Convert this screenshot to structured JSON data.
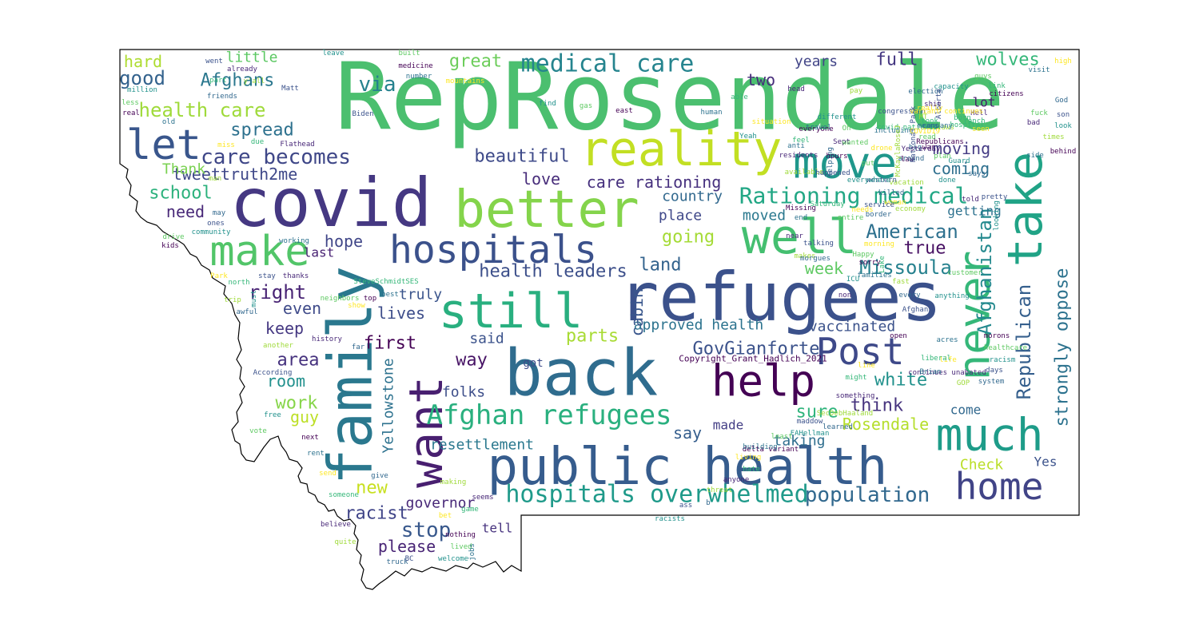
{
  "palette": {
    "outline": "#000000",
    "background": "#ffffff"
  },
  "words": [
    [
      "RepRosendale",
      "#4bbf6f"
    ],
    [
      "refugees",
      "#3b518b"
    ],
    [
      "covid",
      "#453882"
    ],
    [
      "back",
      "#2f6c8e"
    ],
    [
      "public health",
      "#365c8d"
    ],
    [
      "family",
      "#2a788e"
    ],
    [
      "better",
      "#84d44b"
    ],
    [
      "take",
      "#20a386"
    ],
    [
      "reality",
      "#c2df23"
    ],
    [
      "well",
      "#44bf70"
    ],
    [
      "move",
      "#1f978b"
    ],
    [
      "help",
      "#440154"
    ],
    [
      "want",
      "#481f70"
    ],
    [
      "still",
      "#29af7f"
    ],
    [
      "hospitals",
      "#3b518b"
    ],
    [
      "much",
      "#1e9c89"
    ],
    [
      "never",
      "#35b779"
    ],
    [
      "let",
      "#39568c"
    ],
    [
      "make",
      "#52c569"
    ],
    [
      "Post",
      "#3e4989"
    ],
    [
      "home",
      "#414487"
    ],
    [
      "Afghan refugees",
      "#2ab07f"
    ],
    [
      "hospitals overwhelmed",
      "#1f9a8a"
    ],
    [
      "medical care",
      "#25848e"
    ],
    [
      "Rationing medical",
      "#22a785"
    ],
    [
      "Afghanistan",
      "#23898e"
    ],
    [
      "Republican",
      "#355f8d"
    ],
    [
      "strongly oppose",
      "#2c728e"
    ],
    [
      "population",
      "#31688e"
    ],
    [
      "American",
      "#2d708e"
    ],
    [
      "Missoula",
      "#26818e"
    ],
    [
      "care becomes",
      "#3f4788"
    ],
    [
      "health care",
      "#9fda3a"
    ],
    [
      "GovGianforte",
      "#3b528b"
    ],
    [
      "Afghans",
      "#2a778e"
    ],
    [
      "good",
      "#33628d"
    ],
    [
      "via",
      "#26828e"
    ],
    [
      "great",
      "#6ccd5a"
    ],
    [
      "full",
      "#453781"
    ],
    [
      "wolves",
      "#35b779"
    ],
    [
      "two",
      "#472d7b"
    ],
    [
      "years",
      "#414487"
    ],
    [
      "spread",
      "#2d718e"
    ],
    [
      "beautiful",
      "#3e4a89"
    ],
    [
      "care rationing",
      "#46307e"
    ],
    [
      "health leaders",
      "#3c4f8a"
    ],
    [
      "school",
      "#2db27d"
    ],
    [
      "tweettruth2me",
      "#3f4889"
    ],
    [
      "Thank",
      "#7ad151"
    ],
    [
      "need",
      "#482878"
    ],
    [
      "hope",
      "#404688"
    ],
    [
      "right",
      "#482374"
    ],
    [
      "going",
      "#a5db36"
    ],
    [
      "land",
      "#33638d"
    ],
    [
      "moving",
      "#443b84"
    ],
    [
      "coming",
      "#2e6f8e"
    ],
    [
      "week",
      "#5ec962"
    ],
    [
      "true",
      "#471063"
    ],
    [
      "Rosendale",
      "#b5de2b"
    ],
    [
      "think",
      "#46337e"
    ],
    [
      "white",
      "#21918c"
    ],
    [
      "sure",
      "#2fb47c"
    ],
    [
      "vaccinated",
      "#3b528b"
    ],
    [
      "approved health",
      "#2c738e"
    ],
    [
      "parts",
      "#a8db34"
    ],
    [
      "cabin",
      "#39568c"
    ],
    [
      "first",
      "#440154"
    ],
    [
      "truly",
      "#3a548c"
    ],
    [
      "lives",
      "#3d4d8a"
    ],
    [
      "even",
      "#3e4a89"
    ],
    [
      "area",
      "#46327e"
    ],
    [
      "keep",
      "#453882"
    ],
    [
      "room",
      "#21908d"
    ],
    [
      "work",
      "#86d549"
    ],
    [
      "guy",
      "#bddf26"
    ],
    [
      "racist",
      "#404588"
    ],
    [
      "stop",
      "#38588c"
    ],
    [
      "please",
      "#482475"
    ],
    [
      "new",
      "#c8e020"
    ],
    [
      "governor",
      "#482878"
    ],
    [
      "resettlement",
      "#2a788e"
    ],
    [
      "say",
      "#355e8d"
    ],
    [
      "way",
      "#471365"
    ],
    [
      "said",
      "#3b528b"
    ],
    [
      "folks",
      "#3d4e8a"
    ],
    [
      "love",
      "#472c7a"
    ],
    [
      "place",
      "#3f4889"
    ],
    [
      "country",
      "#31688e"
    ],
    [
      "moved",
      "#2a788e"
    ],
    [
      "taking",
      "#2e6e8e"
    ],
    [
      "Check",
      "#bade28"
    ],
    [
      "Yes",
      "#3b528b"
    ],
    [
      "Yellowstone",
      "#2c718e"
    ],
    [
      "made",
      "#433e85"
    ],
    [
      "got",
      "#3e4c8a"
    ],
    [
      "tell",
      "#46327e"
    ],
    [
      "come",
      "#31688e"
    ],
    [
      "lot",
      "#481a6c"
    ],
    [
      "getting",
      "#2c718e"
    ],
    [
      "last",
      "#482173"
    ],
    [
      "hard",
      "#addc30"
    ],
    [
      "little",
      "#5cc863"
    ],
    [
      "Copyright_Grant_Hadlich_2021",
      "#440154"
    ]
  ],
  "small_words": [
    "went",
    "leave",
    "built",
    "medicine",
    "number",
    "mountains",
    "part",
    "already",
    "y'all",
    "friends",
    "Matt",
    "million",
    "less",
    "real",
    "old",
    "miss",
    "due",
    "Flathead",
    "man",
    "may",
    "ones",
    "community",
    "drive",
    "kids",
    "working",
    "Park",
    "north",
    "thanks",
    "trip",
    "awful",
    "stay",
    "must",
    "neighbors",
    "top",
    "best",
    "show",
    "SteveSchmidtSES",
    "history",
    "another",
    "far",
    "According",
    "free",
    "vote",
    "next",
    "rent",
    "send",
    "someone",
    "believe",
    "quite",
    "truck",
    "BC",
    "welcome",
    "lived",
    "nothing",
    "jobs",
    "bet",
    "game",
    "seems",
    "making",
    "give",
    "Biden",
    "find",
    "gas",
    "east",
    "human",
    "situation",
    "able",
    "head",
    "pay",
    "election",
    "Alberta",
    "capacity",
    "guys",
    "citizens",
    "visit",
    "high",
    "link",
    "bad",
    "times",
    "God",
    "son",
    "look",
    "fuck",
    "behind",
    "side",
    "seen",
    "ranch",
    "Hell",
    "laws",
    "big",
    "congressman",
    "different",
    "Oh",
    "everyone",
    "anti",
    "really",
    "covid patients",
    "residents",
    "available",
    "helping",
    "happened",
    "Yeah",
    "put",
    "law",
    "including",
    "drone",
    "feel",
    "Sept",
    "McKaylaRoseJ",
    "around",
    "National Park",
    "done",
    "read",
    "Republicans",
    "company",
    "variant continues",
    "hospital",
    "shit",
    "MT",
    "says",
    "pretty",
    "Guard",
    "plan",
    "war",
    "means",
    "COVID19",
    "took",
    "Yesterday",
    "vacation",
    "killed",
    "western",
    "everywhere",
    "wanted",
    "hours",
    "travel",
    "woman",
    "born",
    "told",
    "economy",
    "border",
    "service",
    "looking",
    "entire",
    "Missing",
    "end",
    "needs",
    "Saturday",
    "near",
    "makes",
    "morgues",
    "talking",
    "ICU",
    "Happy",
    "sorry",
    "families",
    "morning",
    "Lake",
    "non",
    "fast",
    "every",
    "Afghan",
    "anything",
    "customer",
    "open",
    "acres",
    "life",
    "liberal",
    "continues unabated",
    "GOP",
    "system",
    "days",
    "racism",
    "healthcare",
    "morons",
    "Brian",
    "line",
    "might",
    "something",
    "SecDebHaaland",
    "learned",
    "maddow",
    "FAHellman",
    "least",
    "delta variant",
    "building",
    "living",
    "hate",
    "anyone",
    "threat",
    "b",
    "ass",
    "racists"
  ]
}
